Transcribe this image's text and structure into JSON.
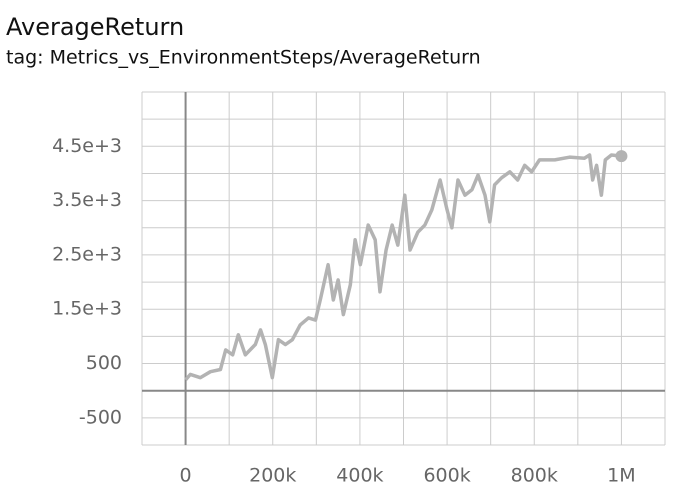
{
  "chart_data": {
    "type": "line",
    "title": "AverageReturn",
    "subtitle": "tag: Metrics_vs_EnvironmentSteps/AverageReturn",
    "x": [
      0,
      11000,
      34000,
      57000,
      80000,
      92000,
      108000,
      121000,
      137000,
      160000,
      172000,
      183000,
      199000,
      213000,
      229000,
      245000,
      263000,
      282000,
      298000,
      309000,
      327000,
      339000,
      350000,
      362000,
      378000,
      389000,
      401000,
      419000,
      435000,
      446000,
      460000,
      474000,
      487000,
      503000,
      515000,
      533000,
      549000,
      565000,
      584000,
      600000,
      611000,
      625000,
      641000,
      657000,
      671000,
      687000,
      698000,
      709000,
      725000,
      744000,
      762000,
      778000,
      794000,
      812000,
      847000,
      881000,
      915000,
      927000,
      934000,
      943000,
      954000,
      963000,
      977000,
      1000000
    ],
    "series": [
      {
        "name": "AverageReturn",
        "color": "#b3b3b3",
        "values": [
          200,
          300,
          240,
          350,
          390,
          750,
          660,
          1030,
          660,
          850,
          1120,
          850,
          240,
          940,
          850,
          940,
          1210,
          1340,
          1300,
          1670,
          2320,
          1670,
          2040,
          1400,
          1950,
          2780,
          2320,
          3050,
          2780,
          1820,
          2590,
          3050,
          2680,
          3600,
          2590,
          2920,
          3050,
          3330,
          3880,
          3330,
          3000,
          3880,
          3600,
          3700,
          3970,
          3600,
          3110,
          3790,
          3920,
          4030,
          3880,
          4150,
          4030,
          4250,
          4250,
          4300,
          4280,
          4340,
          3880,
          4150,
          3600,
          4250,
          4340,
          4320
        ]
      }
    ],
    "xlim": [
      -100000,
      1100000
    ],
    "xticks": [
      0,
      {
        "value": 200000,
        "label": "200k"
      },
      {
        "value": 400000,
        "label": "400k"
      },
      {
        "value": 600000,
        "label": "600k"
      },
      {
        "value": 800000,
        "label": "800k"
      },
      {
        "value": 1000000,
        "label": "1M"
      }
    ],
    "ylim": [
      -1000,
      5500
    ],
    "yticks": [
      -500,
      500,
      {
        "value": 1500,
        "label": "1.5e+3"
      },
      {
        "value": 2500,
        "label": "2.5e+3"
      },
      {
        "value": 3500,
        "label": "3.5e+3"
      },
      {
        "value": 4500,
        "label": "4.5e+3"
      }
    ],
    "grid": true
  }
}
